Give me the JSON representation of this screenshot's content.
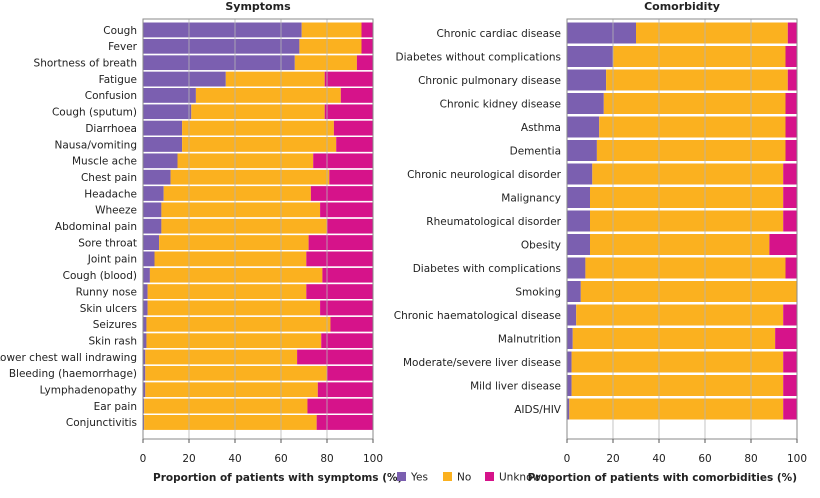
{
  "colors": {
    "yes": "#7b5fb0",
    "no": "#fbb11f",
    "unknown": "#d6138a"
  },
  "legend": [
    {
      "key": "yes",
      "label": "Yes"
    },
    {
      "key": "no",
      "label": "No"
    },
    {
      "key": "unknown",
      "label": "Unknown"
    }
  ],
  "chart_data": [
    {
      "type": "bar",
      "orientation": "horizontal",
      "stacked": true,
      "title": "Symptoms",
      "xlabel": "Proportion of patients with symptoms (%)",
      "xlim": [
        0,
        100
      ],
      "xticks": [
        0,
        20,
        40,
        60,
        80,
        100
      ],
      "categories": [
        "Cough",
        "Fever",
        "Shortness of breath",
        "Fatigue",
        "Confusion",
        "Cough (sputum)",
        "Diarrhoea",
        "Nausa/vomiting",
        "Muscle ache",
        "Chest pain",
        "Headache",
        "Wheeze",
        "Abdominal pain",
        "Sore throat",
        "Joint pain",
        "Cough (blood)",
        "Runny nose",
        "Skin ulcers",
        "Seizures",
        "Skin rash",
        "Lower chest wall indrawing",
        "Bleeding (haemorrhage)",
        "Lymphadenopathy",
        "Ear pain",
        "Conjunctivitis"
      ],
      "series": [
        {
          "name": "Yes",
          "values": [
            69,
            68,
            66,
            36,
            23,
            21,
            17,
            17,
            15,
            12,
            9,
            8,
            8,
            7,
            5,
            3,
            2,
            2,
            1.5,
            1.5,
            1,
            1,
            1,
            0.5,
            0.5
          ]
        },
        {
          "name": "No",
          "values": [
            26,
            27,
            27,
            43,
            63,
            58,
            66,
            67,
            59,
            69,
            64,
            69,
            72,
            65,
            66,
            75,
            69,
            75,
            80,
            76,
            66,
            79,
            75,
            71,
            75
          ]
        },
        {
          "name": "Unknown",
          "values": [
            5,
            5,
            7,
            21,
            14,
            21,
            17,
            16,
            26,
            19,
            27,
            23,
            20,
            28,
            29,
            22,
            29,
            23,
            18.5,
            22.5,
            33,
            20,
            24,
            28.5,
            24.5
          ]
        }
      ],
      "legend": "bottom",
      "grid": true
    },
    {
      "type": "bar",
      "orientation": "horizontal",
      "stacked": true,
      "title": "Comorbidity",
      "xlabel": "Proportion of patients with comorbidities (%)",
      "xlim": [
        0,
        100
      ],
      "xticks": [
        0,
        20,
        40,
        60,
        80,
        100
      ],
      "categories": [
        "Chronic cardiac disease",
        "Diabetes without complications",
        "Chronic pulmonary disease",
        "Chronic kidney disease",
        "Asthma",
        "Dementia",
        "Chronic neurological disorder",
        "Malignancy",
        "Rheumatological disorder",
        "Obesity",
        "Diabetes with complications",
        "Smoking",
        "Chronic haematological disease",
        "Malnutrition",
        "Moderate/severe liver disease",
        "Mild liver disease",
        "AIDS/HIV"
      ],
      "series": [
        {
          "name": "Yes",
          "values": [
            30,
            20,
            17,
            16,
            14,
            13,
            11,
            10,
            10,
            10,
            8,
            6,
            4,
            2.5,
            2,
            2,
            1
          ]
        },
        {
          "name": "No",
          "values": [
            66,
            75,
            79,
            79,
            81,
            82,
            83,
            84,
            84,
            78,
            87,
            94,
            90,
            88,
            92,
            92,
            93
          ]
        },
        {
          "name": "Unknown",
          "values": [
            4,
            5,
            4,
            5,
            5,
            5,
            6,
            6,
            6,
            12,
            5,
            0,
            6,
            9.5,
            6,
            6,
            6
          ]
        }
      ],
      "legend": "bottom",
      "grid": true
    }
  ]
}
